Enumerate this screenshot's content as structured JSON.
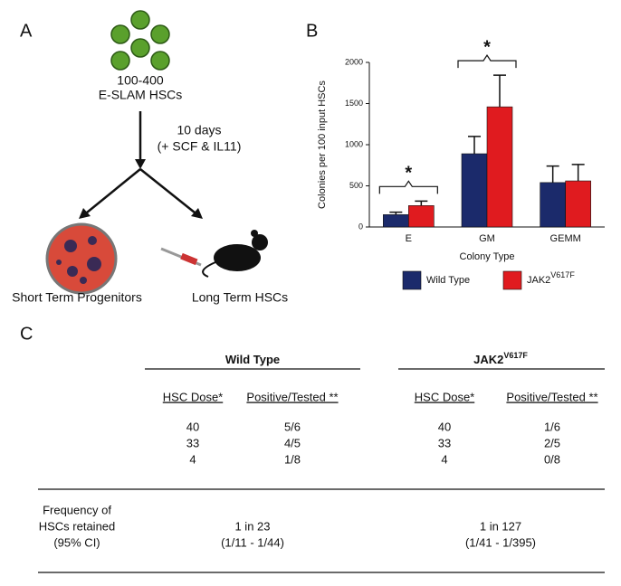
{
  "panels": {
    "a": "A",
    "b": "B",
    "c": "C"
  },
  "diagram": {
    "start": [
      "100-400",
      "E-SLAM HSCs"
    ],
    "step": [
      "10 days",
      "(+ SCF & IL11)"
    ],
    "outcomes": [
      "Short Term Progenitors",
      "Long Term HSCs"
    ]
  },
  "chart_data": {
    "type": "bar",
    "y_label": "Colonies per 100 input HSCs",
    "x_label": "Colony Type",
    "categories": [
      "E",
      "GM",
      "GEMM"
    ],
    "series": [
      {
        "name": "Wild Type",
        "color": "#1b2a6b",
        "values": [
          150,
          890,
          540
        ],
        "errors": [
          30,
          210,
          200
        ]
      },
      {
        "name": "JAK2",
        "name_superscript": "V617F",
        "color": "#e01b1f",
        "values": [
          260,
          1460,
          560
        ],
        "errors": [
          55,
          385,
          200
        ]
      }
    ],
    "ylim": [
      0,
      2000
    ],
    "yticks": [
      0,
      500,
      1000,
      1500,
      2000
    ],
    "annotations": [
      {
        "text": "*",
        "category": "E"
      },
      {
        "text": "*",
        "category": "GM"
      }
    ]
  },
  "table": {
    "groups": [
      {
        "name": "Wild Type"
      },
      {
        "name": "JAK2",
        "name_superscript": "V617F"
      }
    ],
    "columns": [
      "HSC Dose*",
      "Positive/Tested **",
      "HSC Dose*",
      "Positive/Tested **"
    ],
    "rows": [
      [
        "40",
        "5/6",
        "40",
        "1/6"
      ],
      [
        "33",
        "4/5",
        "33",
        "2/5"
      ],
      [
        "4",
        "1/8",
        "4",
        "0/8"
      ]
    ],
    "frequency_label": [
      "Frequency of",
      "HSCs retained",
      "(95% CI)"
    ],
    "frequency": [
      [
        "1 in 23",
        "(1/11 - 1/44)"
      ],
      [
        "1 in 127",
        "(1/41 - 1/395)"
      ]
    ]
  }
}
